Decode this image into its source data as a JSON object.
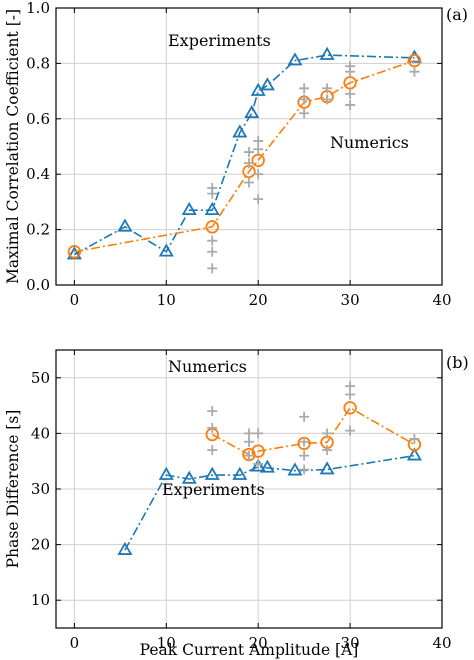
{
  "chart_data": [
    {
      "type": "line",
      "panel_label": "(a)",
      "xlabel": "",
      "ylabel": "Maximal Correlation Coefficient [-]",
      "xlim": [
        -2,
        40
      ],
      "ylim": [
        0,
        1.0
      ],
      "xticks": [
        0,
        10,
        20,
        30,
        40
      ],
      "yticks": [
        0.0,
        0.2,
        0.4,
        0.6,
        0.8,
        1.0
      ],
      "xtick_labels": [
        "0",
        "10",
        "20",
        "30",
        "40"
      ],
      "ytick_labels": [
        "0.0",
        "0.2",
        "0.4",
        "0.6",
        "0.8",
        "1.0"
      ],
      "grid": true,
      "series": [
        {
          "name": "Experiments",
          "color": "#1f77b4",
          "marker": "triangle",
          "linestyle": "dash-dot",
          "x": [
            0,
            5.5,
            10,
            12.5,
            15,
            18,
            19.3,
            20,
            21,
            24,
            27.5,
            37
          ],
          "y": [
            0.11,
            0.21,
            0.12,
            0.27,
            0.27,
            0.55,
            0.62,
            0.7,
            0.72,
            0.81,
            0.83,
            0.82
          ]
        },
        {
          "name": "Numerics",
          "color": "#ff7f0e",
          "marker": "circle",
          "linestyle": "dash-dot",
          "x": [
            0,
            15,
            19,
            20,
            25,
            27.5,
            30,
            37
          ],
          "y": [
            0.12,
            0.21,
            0.41,
            0.45,
            0.66,
            0.68,
            0.73,
            0.81
          ]
        },
        {
          "name": "",
          "color": "#aaaaaa",
          "marker": "plus",
          "linestyle": "none",
          "x": [
            15,
            15,
            15,
            15,
            15,
            19,
            19,
            19,
            20,
            20,
            20,
            20,
            25,
            25,
            25,
            27.5,
            27.5,
            30,
            30,
            30,
            30,
            37
          ],
          "y": [
            0.35,
            0.33,
            0.16,
            0.12,
            0.06,
            0.48,
            0.37,
            0.44,
            0.52,
            0.49,
            0.4,
            0.31,
            0.71,
            0.67,
            0.62,
            0.71,
            0.67,
            0.79,
            0.77,
            0.69,
            0.65,
            0.77
          ]
        }
      ],
      "annotations": [
        "Experiments",
        "Numerics"
      ]
    },
    {
      "type": "line",
      "panel_label": "(b)",
      "xlabel": "Peak Current Amplitude [A]",
      "ylabel": "Phase Difference [s]",
      "xlim": [
        -2,
        40
      ],
      "ylim": [
        5,
        55
      ],
      "xticks": [
        0,
        10,
        20,
        30,
        40
      ],
      "yticks": [
        10,
        20,
        30,
        40,
        50
      ],
      "xtick_labels": [
        "0",
        "10",
        "20",
        "30",
        "40"
      ],
      "ytick_labels": [
        "10",
        "20",
        "30",
        "40",
        "50"
      ],
      "grid": true,
      "series": [
        {
          "name": "Experiments",
          "color": "#1f77b4",
          "marker": "triangle",
          "linestyle": "dash-dot",
          "x": [
            5.5,
            10,
            12.5,
            15,
            18,
            20,
            21,
            24,
            27.5,
            37
          ],
          "y": [
            19,
            32.5,
            31.8,
            32.5,
            32.5,
            34,
            33.8,
            33.3,
            33.5,
            36
          ]
        },
        {
          "name": "Numerics",
          "color": "#ff7f0e",
          "marker": "circle",
          "linestyle": "dash-dot",
          "x": [
            15,
            19,
            20,
            25,
            27.5,
            30,
            37
          ],
          "y": [
            39.8,
            36.2,
            36.8,
            38.2,
            38.4,
            44.6,
            38.0
          ]
        },
        {
          "name": "",
          "color": "#aaaaaa",
          "marker": "plus",
          "linestyle": "none",
          "x": [
            15,
            15,
            15,
            19,
            19,
            19,
            20,
            20,
            25,
            25,
            25,
            25,
            27.5,
            27.5,
            30,
            30,
            30,
            37
          ],
          "y": [
            44,
            41,
            37,
            40,
            38.5,
            36,
            40,
            34.5,
            43,
            38.5,
            36,
            33.5,
            40,
            37,
            48.5,
            47,
            40.5,
            39
          ]
        }
      ],
      "annotations": [
        "Numerics",
        "Experiments"
      ]
    }
  ]
}
